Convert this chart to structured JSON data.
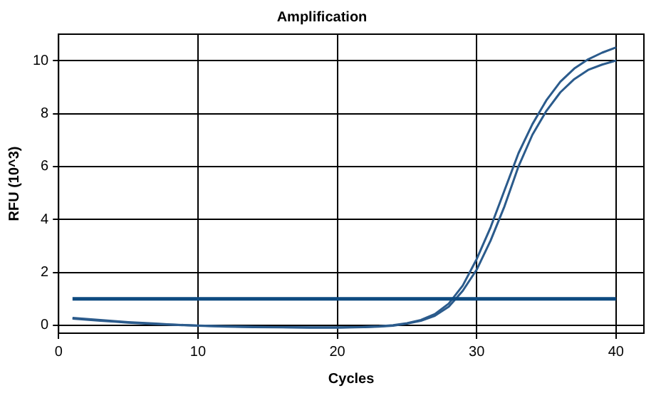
{
  "chart_data": {
    "type": "line",
    "title": "Amplification",
    "xlabel": "Cycles",
    "ylabel": "RFU (10^3)",
    "x": [
      1,
      2,
      3,
      4,
      5,
      6,
      7,
      8,
      9,
      10,
      12,
      14,
      16,
      18,
      20,
      22,
      23,
      24,
      25,
      26,
      27,
      28,
      29,
      30,
      31,
      32,
      33,
      34,
      35,
      36,
      37,
      38,
      39,
      40
    ],
    "series": [
      {
        "color": "#2b5b8c",
        "values": [
          0.28,
          0.24,
          0.2,
          0.16,
          0.12,
          0.09,
          0.06,
          0.03,
          0.01,
          -0.01,
          -0.04,
          -0.06,
          -0.07,
          -0.08,
          -0.08,
          -0.06,
          -0.04,
          0.0,
          0.08,
          0.2,
          0.42,
          0.82,
          1.5,
          2.5,
          3.7,
          5.1,
          6.5,
          7.6,
          8.5,
          9.2,
          9.7,
          10.05,
          10.3,
          10.5
        ]
      },
      {
        "color": "#2b5b8c",
        "values": [
          0.25,
          0.21,
          0.17,
          0.14,
          0.1,
          0.07,
          0.04,
          0.02,
          0.0,
          -0.02,
          -0.05,
          -0.07,
          -0.08,
          -0.09,
          -0.09,
          -0.07,
          -0.05,
          -0.02,
          0.06,
          0.17,
          0.36,
          0.7,
          1.3,
          2.1,
          3.2,
          4.5,
          6.0,
          7.2,
          8.1,
          8.8,
          9.3,
          9.65,
          9.85,
          10.0
        ]
      }
    ],
    "ref_lines": [
      {
        "axis": "y",
        "value": 1,
        "color": "#0d4a80"
      }
    ],
    "xlim": [
      0,
      42
    ],
    "xticks": [
      0,
      10,
      20,
      30,
      40
    ],
    "ylim": [
      -0.3,
      11
    ],
    "yticks": [
      0,
      2,
      4,
      6,
      8,
      10
    ],
    "grid": true,
    "legend": false,
    "marker": "none",
    "line_style": "solid"
  }
}
